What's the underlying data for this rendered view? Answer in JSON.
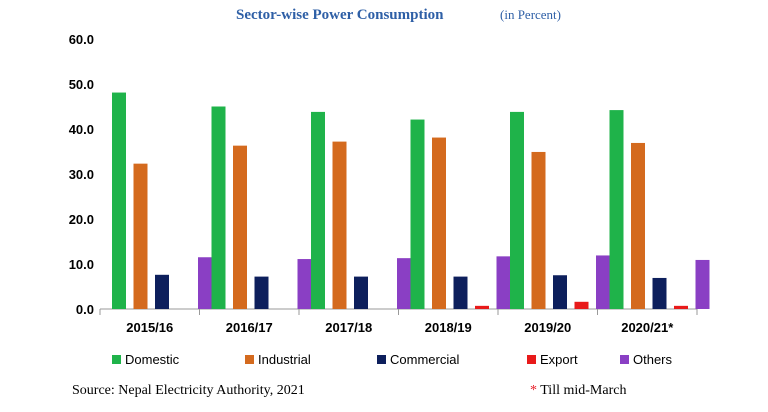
{
  "chart_data": {
    "type": "bar",
    "title": "Sector-wise Power Consumption",
    "subtitle": "(in Percent)",
    "categories": [
      "2015/16",
      "2016/17",
      "2017/18",
      "2018/19",
      "2019/20",
      "2020/21*"
    ],
    "series": [
      {
        "name": "Domestic",
        "color": "#1fb34a",
        "values": [
          48.1,
          45.0,
          43.8,
          42.1,
          43.8,
          44.2
        ]
      },
      {
        "name": "Industrial",
        "color": "#d46a1e",
        "values": [
          32.3,
          36.3,
          37.2,
          38.1,
          34.9,
          36.9
        ]
      },
      {
        "name": "Commercial",
        "color": "#0d1f5c",
        "values": [
          7.6,
          7.2,
          7.2,
          7.2,
          7.5,
          6.9
        ]
      },
      {
        "name": "Export",
        "color": "#e81a1a",
        "values": [
          0.0,
          0.0,
          0.0,
          0.7,
          1.6,
          0.7
        ]
      },
      {
        "name": "Others",
        "color": "#8a3fc4",
        "values": [
          11.5,
          11.1,
          11.3,
          11.7,
          11.9,
          10.9
        ]
      }
    ],
    "ylim": [
      0,
      60
    ],
    "yticks": [
      "0.0",
      "10.0",
      "20.0",
      "30.0",
      "40.0",
      "50.0",
      "60.0"
    ],
    "xlabel": "",
    "ylabel": "",
    "grid": false,
    "legend_position": "bottom"
  },
  "footer": {
    "source": "Source: Nepal Electricity Authority, 2021",
    "note_marker": "*",
    "note_text": "Till mid-March"
  }
}
